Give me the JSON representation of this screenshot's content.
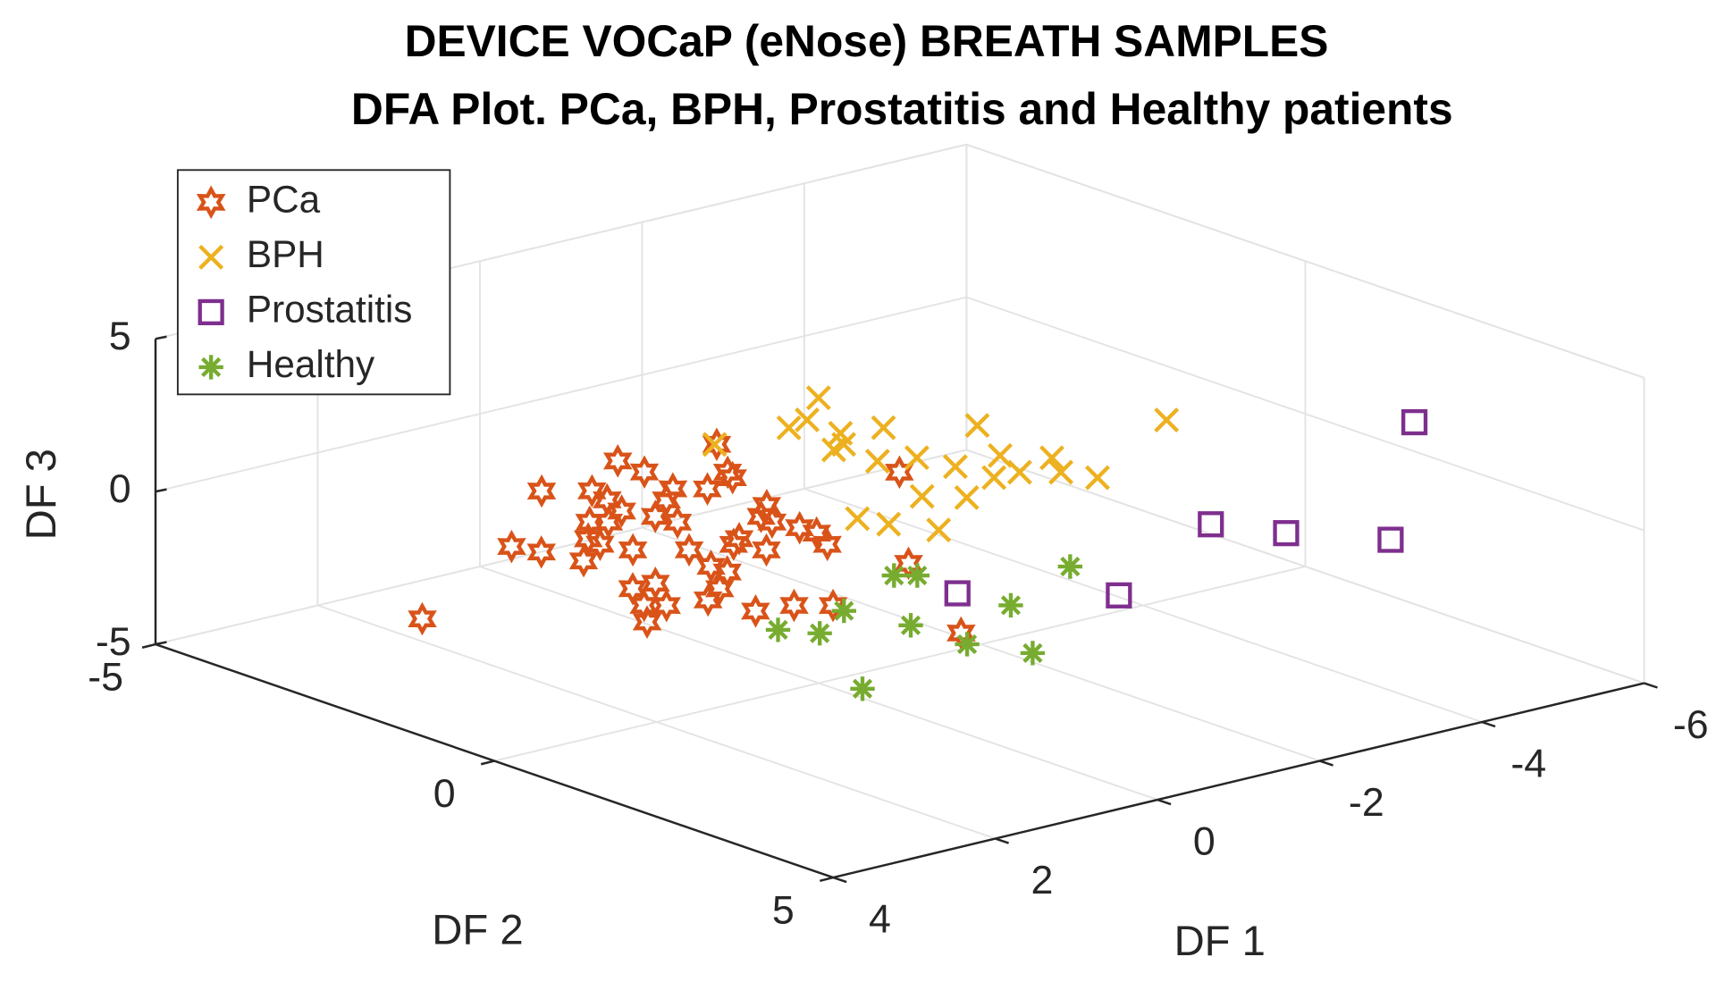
{
  "chart_data": {
    "type": "scatter3d",
    "title": [
      "DEVICE VOCaP (eNose) BREATH SAMPLES",
      "DFA Plot. PCa, BPH, Prostatitis and Healthy patients"
    ],
    "xlabel": "DF 1",
    "ylabel": "DF 2",
    "zlabel": "DF 3",
    "xlim": [
      -6,
      4
    ],
    "xticks": [
      -6,
      -4,
      -2,
      0,
      2,
      4
    ],
    "ylim": [
      -5,
      5
    ],
    "yticks": [
      -5,
      0,
      5
    ],
    "zlim": [
      -5,
      5
    ],
    "zticks": [
      -5,
      0,
      5
    ],
    "grid": true,
    "legend": "upper left",
    "series": [
      {
        "name": "PCa",
        "color": "#D95319",
        "marker": "hexagram",
        "x": [
          0.86,
          -0.33,
          -0.29,
          -0.14,
          -0.39,
          -0.89,
          -1.4,
          -0.81,
          0.49,
          0.57,
          1.17,
          1.03,
          0.7,
          0.57,
          0.14,
          1.44,
          1.56,
          2.03,
          2.25,
          2.15,
          1.03,
          1.22,
          1.22,
          1.63,
          1.95,
          2.26,
          1.98,
          2.53,
          2.37,
          2.86,
          0.59,
          -0.47,
          -0.16,
          -0.2,
          -0.24,
          -0.25,
          -0.09,
          0.43,
          1.84,
          1.44,
          1.16,
          -2.14,
          -0.28,
          0.81,
          3.46,
          1.53,
          0.53,
          0.47
        ],
        "y": [
          -3.06,
          -3.36,
          -2.92,
          -2.32,
          -2.11,
          -2.41,
          -3.18,
          -2.24,
          -2.76,
          -2.44,
          -1.98,
          -1.87,
          -2.07,
          -1.73,
          -2.08,
          -1.02,
          -1.36,
          -1.04,
          -1.84,
          -1.52,
          -0.68,
          -0.13,
          0.11,
          0.49,
          0.7,
          -0.04,
          -0.04,
          0.45,
          0.59,
          0.89,
          -0.55,
          -1.33,
          -0.88,
          -1.09,
          -0.57,
          -0.33,
          0.02,
          -0.66,
          1.27,
          1.36,
          1.6,
          -1.37,
          0.99,
          3.07,
          -1.71,
          -1.57,
          -1.45,
          -0.21
        ],
        "z": [
          -0.5,
          -0.5,
          -0.5,
          -0.5,
          -0.5,
          -0.5,
          -0.5,
          -0.5,
          -0.5,
          -0.5,
          -0.5,
          -0.5,
          -0.5,
          -0.5,
          -0.5,
          -0.5,
          -0.5,
          -0.5,
          -0.5,
          -0.5,
          -0.5,
          -0.5,
          -0.5,
          -0.5,
          -0.5,
          -0.5,
          -0.5,
          -0.5,
          -0.5,
          -0.5,
          -0.5,
          -0.5,
          -0.5,
          -0.5,
          -0.5,
          -0.5,
          -0.5,
          -0.5,
          -0.5,
          -0.5,
          -0.5,
          -0.5,
          -0.5,
          -0.5,
          -2,
          -0.5,
          -0.5,
          -0.5
        ]
      },
      {
        "name": "BPH",
        "color": "#EDB120",
        "marker": "x",
        "x": [
          0.23,
          -0.66,
          -1.51,
          -0.96,
          -0.92,
          -0.52,
          -1.35,
          -0.6,
          -0.96,
          -2.08,
          -1.05,
          -1.61,
          -1.1,
          -1.4,
          -1.94,
          -1.7,
          -1.85,
          -3.57,
          0.76,
          0.65,
          -0.18,
          0.41,
          -0.48,
          -0.71
        ],
        "y": [
          -1.26,
          -1.23,
          -1.81,
          -1.32,
          -0.78,
          -0.4,
          -0.66,
          0.15,
          0.3,
          -0.15,
          0.76,
          0.75,
          1.27,
          1.29,
          1.12,
          1.54,
          1.9,
          0.86,
          1.48,
          1.81,
          1.31,
          2.26,
          1.61,
          -0.48
        ],
        "z": [
          2,
          2,
          2,
          2,
          2,
          2,
          2,
          2,
          2,
          2,
          2,
          2,
          2,
          2,
          2,
          2,
          2,
          2,
          2,
          2,
          2,
          2,
          2,
          2
        ]
      },
      {
        "name": "Prostatitis",
        "color": "#7E2F8E",
        "marker": "square",
        "x": [
          -4.68,
          -2.98,
          -3.34,
          -3.96,
          -0.81,
          0.32
        ],
        "y": [
          3.19,
          2.22,
          2.9,
          3.7,
          3.46,
          2.43
        ],
        "z": [
          3,
          0,
          0,
          0,
          0,
          0
        ]
      },
      {
        "name": "Healthy",
        "color": "#77AC30",
        "marker": "asterisk",
        "x": [
          0.46,
          0.23,
          -0.42,
          -0.6,
          -0.61,
          -1.75,
          -0.9,
          -3.0,
          1.09,
          -1.53,
          -1.7
        ],
        "y": [
          -0.05,
          0.29,
          -0.13,
          0.64,
          1.46,
          0.74,
          2.08,
          0.12,
          1.95,
          -0.72,
          -0.58
        ],
        "z": [
          -3,
          -3,
          -3,
          -3,
          -3,
          -3,
          -3,
          -3,
          -3,
          -3,
          -3
        ]
      }
    ]
  }
}
